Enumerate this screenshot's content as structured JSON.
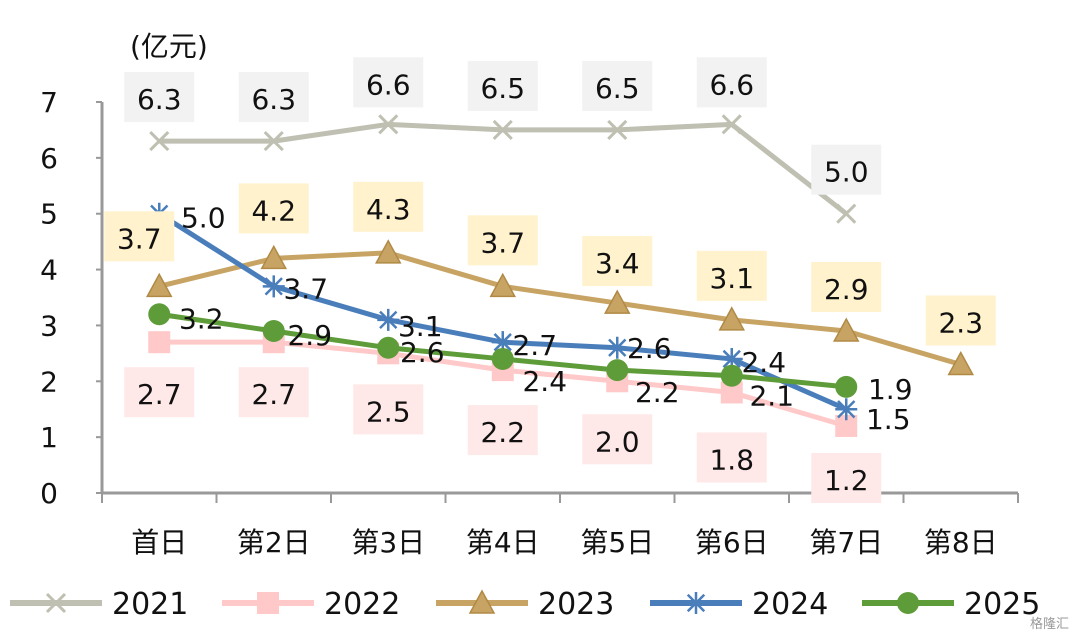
{
  "chart_data": {
    "type": "line",
    "ylabel": "(亿元)",
    "ylim": [
      0,
      7
    ],
    "yticks": [
      "0",
      "1",
      "2",
      "3",
      "4",
      "5",
      "6",
      "7"
    ],
    "categories": [
      "首日",
      "第2日",
      "第3日",
      "第4日",
      "第5日",
      "第6日",
      "第7日",
      "第8日"
    ],
    "legend_position": "bottom",
    "grid": false,
    "series": [
      {
        "name": "2021",
        "color": "#bfbfb2",
        "marker": "x",
        "label_bg": "#f2f2f2",
        "values": [
          6.3,
          6.3,
          6.6,
          6.5,
          6.5,
          6.6,
          5.0,
          null
        ],
        "labels": [
          "6.3",
          "6.3",
          "6.6",
          "6.5",
          "6.5",
          "6.6",
          "5.0",
          null
        ]
      },
      {
        "name": "2022",
        "color": "#ffc9c9",
        "marker": "square",
        "label_bg": "#ffe8e8",
        "values": [
          2.7,
          2.7,
          2.5,
          2.2,
          2.0,
          1.8,
          1.2,
          null
        ],
        "labels": [
          "2.7",
          "2.7",
          "2.5",
          "2.2",
          "2.0",
          "1.8",
          "1.2",
          null
        ]
      },
      {
        "name": "2023",
        "color": "#c8a464",
        "marker": "triangle",
        "label_bg": "#fff2cc",
        "values": [
          3.7,
          4.2,
          4.3,
          3.7,
          3.4,
          3.1,
          2.9,
          2.3
        ],
        "labels": [
          "3.7",
          "4.2",
          "4.3",
          "3.7",
          "3.4",
          "3.1",
          "2.9",
          "2.3"
        ]
      },
      {
        "name": "2024",
        "color": "#4a7ebb",
        "marker": "star",
        "label_bg": null,
        "values": [
          5.0,
          3.7,
          3.1,
          2.7,
          2.6,
          2.4,
          1.5,
          null
        ],
        "labels": [
          "5.0",
          "3.7",
          "3.1",
          "2.7",
          "2.6",
          "2.4",
          "1.5",
          null
        ]
      },
      {
        "name": "2025",
        "color": "#5e9c3a",
        "marker": "circle",
        "label_bg": null,
        "values": [
          3.2,
          2.9,
          2.6,
          2.4,
          2.2,
          2.1,
          1.9,
          null
        ],
        "labels": [
          "3.2",
          "2.9",
          "2.6",
          "2.4",
          "2.2",
          "2.1",
          "1.9",
          null
        ]
      }
    ]
  },
  "watermark": "格隆汇"
}
